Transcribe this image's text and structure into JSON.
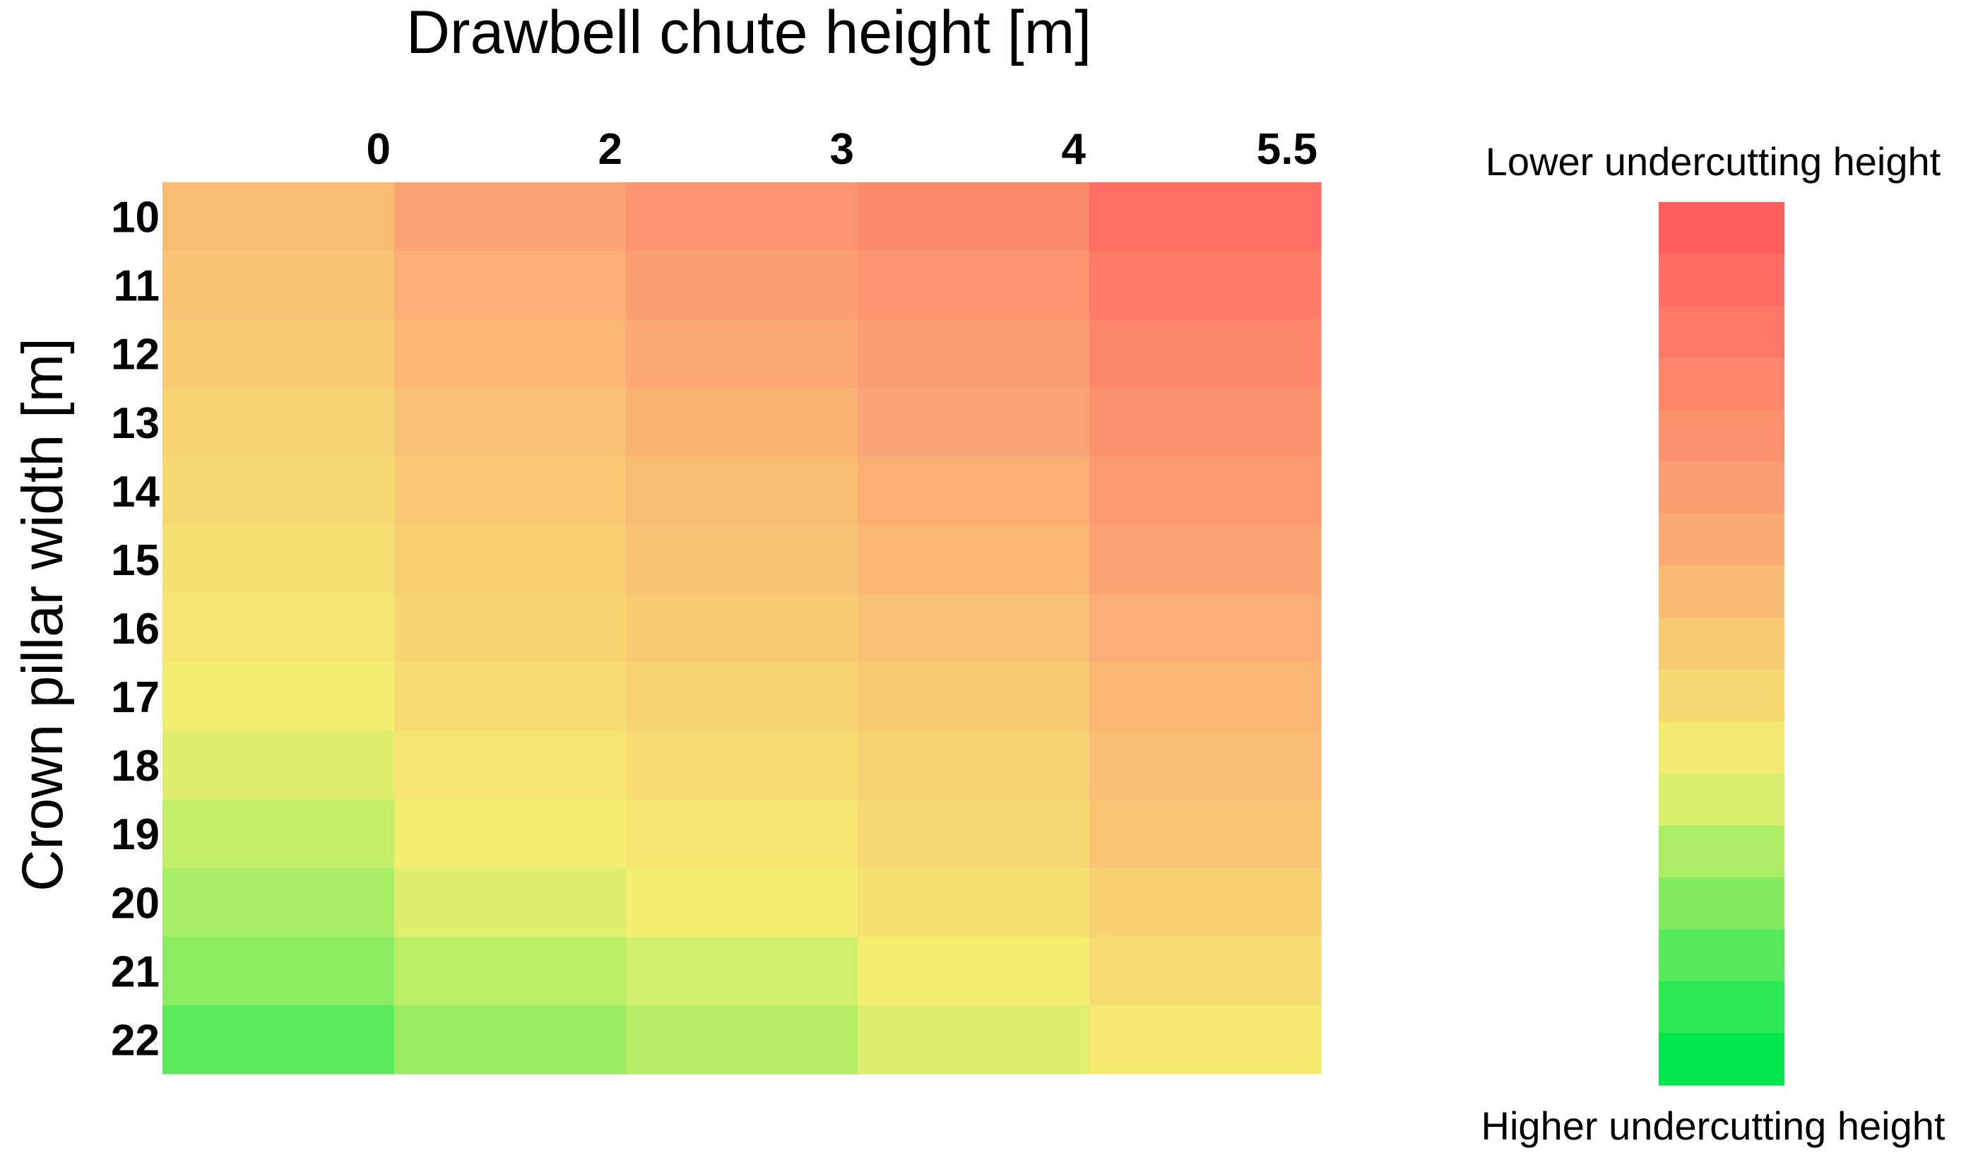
{
  "chart_data": {
    "type": "heatmap",
    "title": "",
    "xlabel": "Drawbell chute height [m]",
    "ylabel": "Crown pillar width [m]",
    "x_tick_labels": [
      "0",
      "2",
      "3",
      "4",
      "5.5"
    ],
    "y_tick_labels": [
      "10",
      "11",
      "12",
      "13",
      "14",
      "15",
      "16",
      "17",
      "18",
      "19",
      "20",
      "21",
      "22"
    ],
    "value_scale_note": "relative colour level: 0 = higher undercutting height (green), 1 = lower undercutting height (red)",
    "values": [
      [
        0.56,
        0.66,
        0.73,
        0.78,
        0.92
      ],
      [
        0.53,
        0.62,
        0.68,
        0.73,
        0.86
      ],
      [
        0.5,
        0.58,
        0.64,
        0.69,
        0.8
      ],
      [
        0.47,
        0.54,
        0.6,
        0.65,
        0.75
      ],
      [
        0.44,
        0.51,
        0.56,
        0.61,
        0.7
      ],
      [
        0.41,
        0.48,
        0.53,
        0.57,
        0.66
      ],
      [
        0.39,
        0.46,
        0.5,
        0.54,
        0.62
      ],
      [
        0.36,
        0.43,
        0.47,
        0.5,
        0.58
      ],
      [
        0.32,
        0.4,
        0.43,
        0.47,
        0.55
      ],
      [
        0.28,
        0.36,
        0.39,
        0.44,
        0.52
      ],
      [
        0.24,
        0.32,
        0.36,
        0.41,
        0.48
      ],
      [
        0.2,
        0.27,
        0.3,
        0.36,
        0.43
      ],
      [
        0.13,
        0.22,
        0.26,
        0.32,
        0.38
      ]
    ],
    "legend": {
      "top_label": "Lower undercutting height",
      "bottom_label": "Higher undercutting height",
      "levels": 17
    },
    "colors": {
      "green": "#00e64d",
      "yellow": "#f4f070",
      "orange": "#fba574",
      "red": "#ff5f5f"
    }
  }
}
